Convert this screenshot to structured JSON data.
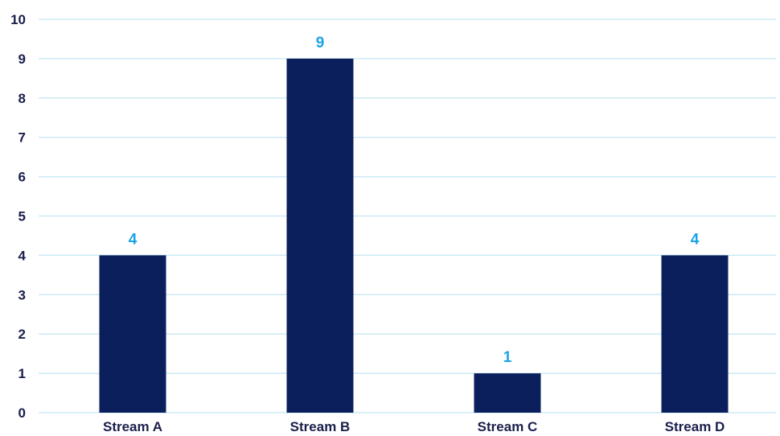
{
  "chart_data": {
    "type": "bar",
    "categories": [
      "Stream A",
      "Stream B",
      "Stream C",
      "Stream D"
    ],
    "values": [
      4,
      9,
      1,
      4
    ],
    "data_labels": [
      "4",
      "9",
      "1",
      "4"
    ],
    "y_ticks": [
      "0",
      "1",
      "2",
      "3",
      "4",
      "5",
      "6",
      "7",
      "8",
      "9",
      "10"
    ],
    "ylim": [
      0,
      10
    ],
    "grid": true,
    "legend": false,
    "colors": {
      "bar": "#0a1f5c",
      "data_label": "#1aa3e8",
      "grid": "#cdeaf5",
      "axis_text": "#1a1f4b"
    }
  }
}
